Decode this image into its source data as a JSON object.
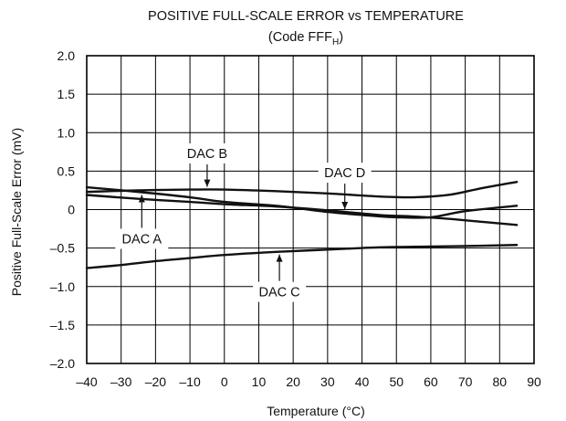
{
  "chart_data": {
    "type": "line",
    "title": "POSITIVE FULL-SCALE ERROR vs TEMPERATURE",
    "subtitle": {
      "prefix": "(Code FFF",
      "subscript": "H",
      "suffix": ")"
    },
    "xlabel": "Temperature (°C)",
    "ylabel": "Positive Full-Scale Error (mV)",
    "xlim": [
      -40,
      90
    ],
    "ylim": [
      -2.0,
      2.0
    ],
    "x_ticks": [
      -40,
      -30,
      -20,
      -10,
      0,
      10,
      20,
      30,
      40,
      50,
      60,
      70,
      80,
      90
    ],
    "x_tick_labels": [
      "–40",
      "–30",
      "–20",
      "–10",
      "0",
      "10",
      "20",
      "30",
      "40",
      "50",
      "60",
      "70",
      "80",
      "90"
    ],
    "y_ticks": [
      2.0,
      1.5,
      1.0,
      0.5,
      0,
      -0.5,
      -1.0,
      -1.5,
      -2.0
    ],
    "y_tick_labels": [
      "2.0",
      "1.5",
      "1.0",
      "0.5",
      "0",
      "–0.5",
      "–1.0",
      "–1.5",
      "–2.0"
    ],
    "grid": true,
    "series": [
      {
        "name": "DAC A",
        "x": [
          -40,
          -25,
          -10,
          0,
          15,
          30,
          40,
          50,
          60,
          70,
          85
        ],
        "y": [
          0.29,
          0.23,
          0.16,
          0.1,
          0.05,
          -0.03,
          -0.07,
          -0.1,
          -0.1,
          -0.02,
          0.05
        ]
      },
      {
        "name": "DAC B",
        "x": [
          -40,
          -25,
          -10,
          0,
          15,
          30,
          45,
          55,
          65,
          75,
          85
        ],
        "y": [
          0.23,
          0.25,
          0.26,
          0.26,
          0.24,
          0.21,
          0.17,
          0.16,
          0.19,
          0.28,
          0.36
        ]
      },
      {
        "name": "DAC C",
        "x": [
          -40,
          -30,
          -20,
          -10,
          0,
          15,
          30,
          45,
          60,
          75,
          85
        ],
        "y": [
          -0.76,
          -0.72,
          -0.67,
          -0.63,
          -0.59,
          -0.55,
          -0.52,
          -0.49,
          -0.48,
          -0.47,
          -0.46
        ]
      },
      {
        "name": "DAC D",
        "x": [
          -40,
          -25,
          -10,
          0,
          15,
          30,
          45,
          55,
          65,
          75,
          85
        ],
        "y": [
          0.19,
          0.14,
          0.1,
          0.07,
          0.04,
          -0.01,
          -0.07,
          -0.09,
          -0.12,
          -0.16,
          -0.2
        ]
      }
    ],
    "annotations": [
      {
        "text": "DAC A",
        "target_series": "DAC A"
      },
      {
        "text": "DAC B",
        "target_series": "DAC B"
      },
      {
        "text": "DAC C",
        "target_series": "DAC C"
      },
      {
        "text": "DAC D",
        "target_series": "DAC D"
      }
    ]
  }
}
